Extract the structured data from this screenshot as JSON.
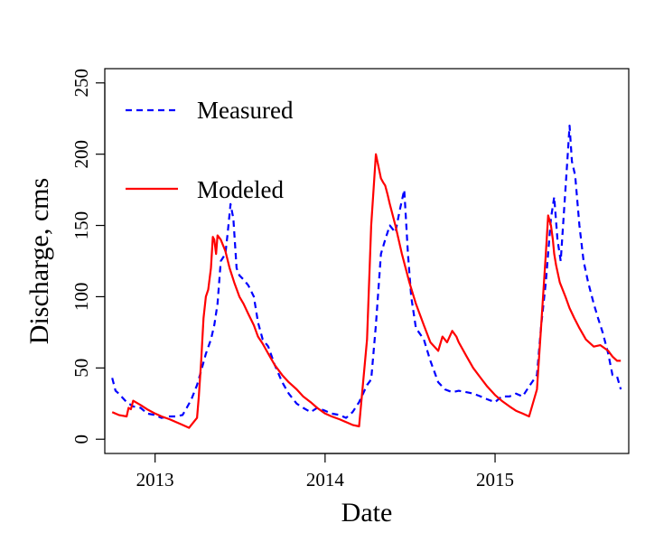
{
  "chart_data": {
    "type": "line",
    "xlabel": "Date",
    "ylabel": "Discharge, cms",
    "xlim": [
      "2012-09-15",
      "2015-10-15"
    ],
    "ylim": [
      -10,
      260
    ],
    "x_ticks": [
      "2013",
      "2014",
      "2015"
    ],
    "x_tick_dates": [
      "2013-01-01",
      "2014-01-01",
      "2015-01-01"
    ],
    "y_ticks": [
      0,
      50,
      100,
      150,
      200,
      250
    ],
    "grid": false,
    "legend_position": "top-left",
    "series": [
      {
        "name": "Measured",
        "color": "#0000ff",
        "style": "dashed",
        "x": [
          "2012-10-01",
          "2012-10-08",
          "2012-10-15",
          "2012-11-01",
          "2012-11-15",
          "2012-12-01",
          "2012-12-15",
          "2013-01-01",
          "2013-01-15",
          "2013-02-01",
          "2013-02-15",
          "2013-03-01",
          "2013-03-10",
          "2013-03-20",
          "2013-04-01",
          "2013-04-10",
          "2013-04-20",
          "2013-05-01",
          "2013-05-08",
          "2013-05-15",
          "2013-05-22",
          "2013-06-01",
          "2013-06-06",
          "2013-06-12",
          "2013-06-18",
          "2013-06-25",
          "2013-07-01",
          "2013-07-10",
          "2013-07-20",
          "2013-08-01",
          "2013-08-10",
          "2013-08-20",
          "2013-09-01",
          "2013-09-15",
          "2013-10-01",
          "2013-10-15",
          "2013-11-01",
          "2013-11-15",
          "2013-12-01",
          "2013-12-15",
          "2014-01-01",
          "2014-01-15",
          "2014-02-01",
          "2014-02-15",
          "2014-03-01",
          "2014-03-15",
          "2014-04-01",
          "2014-04-10",
          "2014-04-20",
          "2014-05-01",
          "2014-05-10",
          "2014-05-20",
          "2014-06-01",
          "2014-06-10",
          "2014-06-20",
          "2014-06-28",
          "2014-07-05",
          "2014-07-15",
          "2014-08-01",
          "2014-08-15",
          "2014-09-01",
          "2014-09-15",
          "2014-10-01",
          "2014-10-15",
          "2014-11-01",
          "2014-11-15",
          "2014-12-01",
          "2014-12-15",
          "2015-01-01",
          "2015-01-15",
          "2015-02-01",
          "2015-02-15",
          "2015-03-01",
          "2015-03-15",
          "2015-04-01",
          "2015-04-10",
          "2015-04-20",
          "2015-05-01",
          "2015-05-08",
          "2015-05-15",
          "2015-05-22",
          "2015-06-01",
          "2015-06-06",
          "2015-06-10",
          "2015-06-15",
          "2015-06-22",
          "2015-07-01",
          "2015-07-10",
          "2015-07-20",
          "2015-08-01",
          "2015-08-10",
          "2015-08-20",
          "2015-09-01",
          "2015-09-10",
          "2015-09-20",
          "2015-09-28"
        ],
        "y": [
          43,
          34,
          32,
          26,
          23,
          22,
          18,
          17,
          15,
          16,
          16,
          17,
          22,
          28,
          38,
          48,
          60,
          70,
          80,
          95,
          125,
          130,
          145,
          165,
          155,
          120,
          115,
          112,
          108,
          100,
          82,
          70,
          65,
          52,
          40,
          32,
          25,
          22,
          19,
          22,
          20,
          18,
          17,
          15,
          19,
          26,
          38,
          42,
          80,
          130,
          140,
          150,
          145,
          160,
          175,
          130,
          100,
          78,
          70,
          55,
          40,
          35,
          33,
          34,
          33,
          32,
          30,
          28,
          26,
          30,
          30,
          32,
          30,
          37,
          45,
          80,
          110,
          155,
          170,
          140,
          125,
          175,
          200,
          220,
          195,
          185,
          150,
          125,
          110,
          95,
          85,
          75,
          60,
          45,
          44,
          35
        ]
      },
      {
        "name": "Modeled",
        "color": "#ff0000",
        "style": "solid",
        "x": [
          "2012-10-01",
          "2012-10-15",
          "2012-11-01",
          "2012-11-05",
          "2012-11-10",
          "2012-11-15",
          "2012-12-01",
          "2012-12-15",
          "2013-01-01",
          "2013-01-15",
          "2013-02-01",
          "2013-02-15",
          "2013-03-01",
          "2013-03-15",
          "2013-04-01",
          "2013-04-05",
          "2013-04-10",
          "2013-04-15",
          "2013-04-20",
          "2013-04-25",
          "2013-05-01",
          "2013-05-05",
          "2013-05-08",
          "2013-05-12",
          "2013-05-15",
          "2013-05-22",
          "2013-06-01",
          "2013-06-10",
          "2013-06-20",
          "2013-07-01",
          "2013-07-10",
          "2013-07-20",
          "2013-08-01",
          "2013-08-10",
          "2013-08-20",
          "2013-09-01",
          "2013-09-15",
          "2013-10-01",
          "2013-10-15",
          "2013-11-01",
          "2013-11-15",
          "2013-12-01",
          "2013-12-15",
          "2014-01-01",
          "2014-01-15",
          "2014-02-01",
          "2014-02-15",
          "2014-03-01",
          "2014-03-15",
          "2014-04-01",
          "2014-04-10",
          "2014-04-20",
          "2014-05-01",
          "2014-05-06",
          "2014-05-10",
          "2014-05-15",
          "2014-05-20",
          "2014-06-01",
          "2014-06-15",
          "2014-07-01",
          "2014-07-15",
          "2014-08-01",
          "2014-08-15",
          "2014-09-01",
          "2014-09-10",
          "2014-09-20",
          "2014-10-01",
          "2014-10-10",
          "2014-10-15",
          "2014-11-01",
          "2014-11-15",
          "2014-12-01",
          "2014-12-15",
          "2015-01-01",
          "2015-01-15",
          "2015-02-01",
          "2015-02-15",
          "2015-03-01",
          "2015-03-15",
          "2015-04-01",
          "2015-04-10",
          "2015-04-20",
          "2015-04-25",
          "2015-05-01",
          "2015-05-05",
          "2015-05-08",
          "2015-05-12",
          "2015-05-20",
          "2015-06-01",
          "2015-06-10",
          "2015-06-20",
          "2015-07-01",
          "2015-07-15",
          "2015-08-01",
          "2015-08-15",
          "2015-09-01",
          "2015-09-10",
          "2015-09-20",
          "2015-09-28"
        ],
        "y": [
          19,
          17,
          16,
          22,
          21,
          27,
          24,
          21,
          18,
          16,
          14,
          12,
          10,
          8,
          15,
          30,
          55,
          85,
          100,
          105,
          120,
          142,
          140,
          130,
          143,
          140,
          132,
          120,
          110,
          100,
          95,
          88,
          80,
          72,
          67,
          60,
          52,
          45,
          40,
          35,
          30,
          26,
          22,
          18,
          16,
          14,
          12,
          10,
          9,
          70,
          150,
          200,
          183,
          180,
          178,
          172,
          165,
          150,
          130,
          110,
          95,
          80,
          68,
          62,
          72,
          68,
          76,
          72,
          68,
          58,
          50,
          43,
          37,
          31,
          27,
          23,
          20,
          18,
          16,
          35,
          80,
          130,
          157,
          150,
          140,
          130,
          122,
          110,
          100,
          92,
          85,
          78,
          70,
          65,
          66,
          62,
          58,
          55,
          55
        ]
      }
    ]
  }
}
